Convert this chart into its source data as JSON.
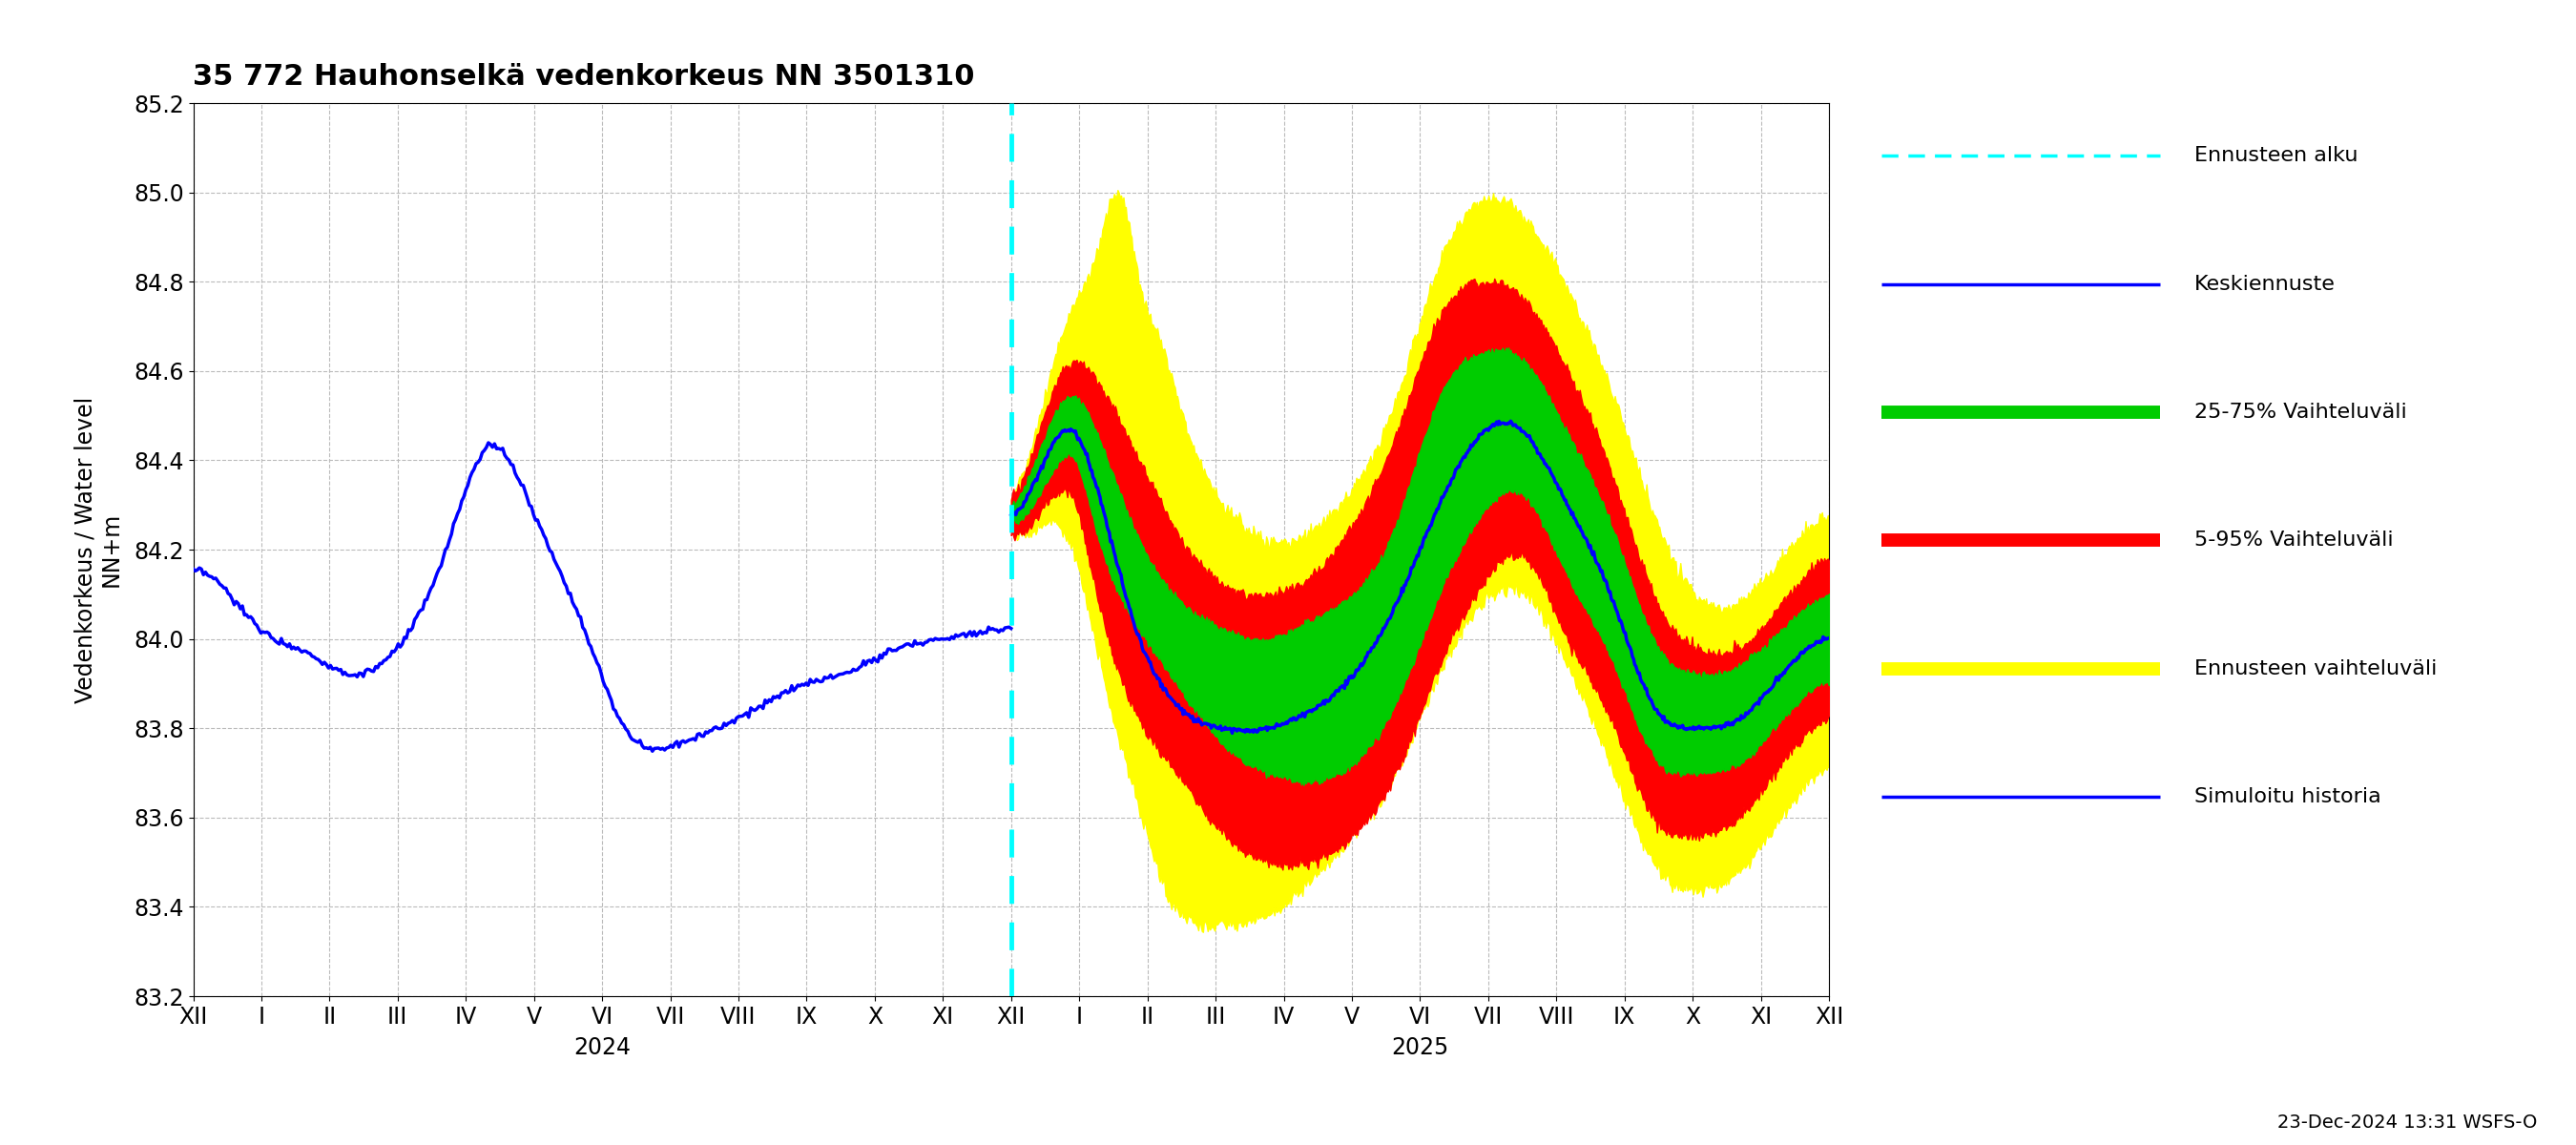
{
  "title": "35 772 Hauhonselkä vedenkorkeus NN 3501310",
  "ylabel": "Vedenkorkeus / Water level\nNN+m",
  "ylim": [
    83.2,
    85.2
  ],
  "yticks": [
    83.2,
    83.4,
    83.6,
    83.8,
    84.0,
    84.2,
    84.4,
    84.6,
    84.8,
    85.0,
    85.2
  ],
  "timestamp_label": "23-Dec-2024 13:31 WSFS-O",
  "colors": {
    "history_line": "#0000ff",
    "forecast_line": "#0000ff",
    "band_25_75": "#00cc00",
    "band_5_95": "#ff0000",
    "band_ennuste": "#ffff00",
    "forecast_vline": "#00ffff",
    "grid": "#aaaaaa"
  },
  "x_labels": [
    "XII",
    "I",
    "II",
    "III",
    "IV",
    "V",
    "VI",
    "VII",
    "VIII",
    "IX",
    "X",
    "XI",
    "XII",
    "I",
    "II",
    "III",
    "IV",
    "V",
    "VI",
    "VII",
    "VIII",
    "IX",
    "X",
    "XI",
    "XII"
  ],
  "legend_entries": [
    {
      "label": "Ennusteen alku",
      "color": "#00ffff",
      "ls": "dashed",
      "lw": 2.5
    },
    {
      "label": "Keskiennuste",
      "color": "#0000ff",
      "ls": "solid",
      "lw": 2.5
    },
    {
      "label": "25-75% Vaihteluväli",
      "color": "#00cc00",
      "ls": "solid",
      "lw": 10
    },
    {
      "label": "5-95% Vaihteluväli",
      "color": "#ff0000",
      "ls": "solid",
      "lw": 10
    },
    {
      "label": "Ennusteen vaihteluväli",
      "color": "#ffff00",
      "ls": "solid",
      "lw": 10
    },
    {
      "label": "Simuloitu historia",
      "color": "#0000ff",
      "ls": "solid",
      "lw": 2.5
    }
  ],
  "hist_key_x": [
    0,
    1,
    3,
    5,
    7,
    9,
    11,
    13,
    15,
    17,
    19,
    21,
    23,
    25,
    27,
    29,
    31,
    33,
    35,
    36
  ],
  "hist_key_y": [
    84.15,
    84.13,
    84.02,
    83.97,
    83.92,
    83.98,
    84.18,
    84.43,
    84.28,
    84.05,
    83.8,
    83.76,
    83.8,
    83.85,
    83.9,
    83.93,
    83.98,
    84.0,
    84.02,
    84.02
  ],
  "fc_median_x": [
    0,
    5,
    10,
    15,
    20,
    25,
    30,
    35,
    40,
    50,
    60,
    70,
    80,
    90,
    100,
    110,
    120,
    130,
    140,
    150,
    160,
    170,
    180,
    191
  ],
  "fc_median_y": [
    84.28,
    84.34,
    84.44,
    84.46,
    84.34,
    84.16,
    84.0,
    83.9,
    83.84,
    83.8,
    83.8,
    83.84,
    83.92,
    84.08,
    84.3,
    84.46,
    84.46,
    84.3,
    84.1,
    83.85,
    83.8,
    83.82,
    83.92,
    84.0
  ],
  "fc_green_hi_x": [
    0,
    5,
    10,
    15,
    20,
    30,
    40,
    50,
    60,
    70,
    80,
    90,
    100,
    110,
    120,
    130,
    140,
    150,
    160,
    170,
    180,
    191
  ],
  "fc_green_hi_y": [
    84.3,
    84.38,
    84.5,
    84.54,
    84.46,
    84.22,
    84.08,
    84.02,
    84.0,
    84.04,
    84.1,
    84.26,
    84.54,
    84.64,
    84.62,
    84.46,
    84.26,
    84.0,
    83.92,
    83.94,
    84.02,
    84.1
  ],
  "fc_green_lo_x": [
    0,
    5,
    10,
    15,
    20,
    30,
    40,
    50,
    60,
    70,
    80,
    90,
    100,
    110,
    120,
    130,
    140,
    150,
    160,
    170,
    180,
    191
  ],
  "fc_green_lo_y": [
    84.26,
    84.3,
    84.38,
    84.4,
    84.24,
    84.02,
    83.88,
    83.76,
    83.7,
    83.68,
    83.72,
    83.86,
    84.1,
    84.28,
    84.32,
    84.14,
    83.96,
    83.74,
    83.7,
    83.72,
    83.82,
    83.9
  ],
  "fc_red_hi_x": [
    0,
    5,
    10,
    15,
    20,
    30,
    40,
    50,
    60,
    70,
    80,
    90,
    100,
    110,
    120,
    130,
    140,
    150,
    160,
    170,
    180,
    191
  ],
  "fc_red_hi_y": [
    84.32,
    84.42,
    84.56,
    84.62,
    84.58,
    84.4,
    84.22,
    84.12,
    84.1,
    84.14,
    84.26,
    84.46,
    84.72,
    84.8,
    84.76,
    84.6,
    84.38,
    84.1,
    83.98,
    83.98,
    84.08,
    84.18
  ],
  "fc_red_lo_x": [
    0,
    5,
    10,
    15,
    20,
    30,
    40,
    50,
    60,
    70,
    80,
    90,
    100,
    110,
    120,
    130,
    140,
    150,
    160,
    170,
    180,
    191
  ],
  "fc_red_lo_y": [
    84.24,
    84.26,
    84.32,
    84.3,
    84.1,
    83.82,
    83.68,
    83.56,
    83.5,
    83.5,
    83.56,
    83.7,
    83.94,
    84.12,
    84.18,
    84.0,
    83.82,
    83.6,
    83.56,
    83.6,
    83.72,
    83.82
  ],
  "fc_yel_hi_x": [
    0,
    5,
    10,
    15,
    20,
    25,
    30,
    35,
    40,
    50,
    60,
    70,
    80,
    90,
    100,
    110,
    120,
    130,
    140,
    150,
    160,
    170,
    180,
    191
  ],
  "fc_yel_hi_y": [
    84.32,
    84.44,
    84.62,
    84.76,
    84.86,
    85.0,
    84.8,
    84.66,
    84.5,
    84.3,
    84.22,
    84.24,
    84.34,
    84.54,
    84.84,
    84.98,
    84.94,
    84.78,
    84.56,
    84.28,
    84.1,
    84.08,
    84.18,
    84.28
  ],
  "fc_yel_lo_x": [
    0,
    5,
    10,
    15,
    20,
    25,
    30,
    35,
    40,
    50,
    60,
    70,
    80,
    90,
    100,
    110,
    120,
    130,
    140,
    150,
    160,
    170,
    180,
    191
  ],
  "fc_yel_lo_y": [
    84.24,
    84.24,
    84.26,
    84.18,
    83.98,
    83.78,
    83.62,
    83.46,
    83.38,
    83.36,
    83.38,
    83.46,
    83.56,
    83.7,
    83.92,
    84.08,
    84.1,
    83.94,
    83.72,
    83.5,
    83.44,
    83.48,
    83.6,
    83.72
  ],
  "n_hist_months": 13,
  "n_fc_months": 24,
  "n_hist_pts": 400,
  "n_fc_pts": 700
}
